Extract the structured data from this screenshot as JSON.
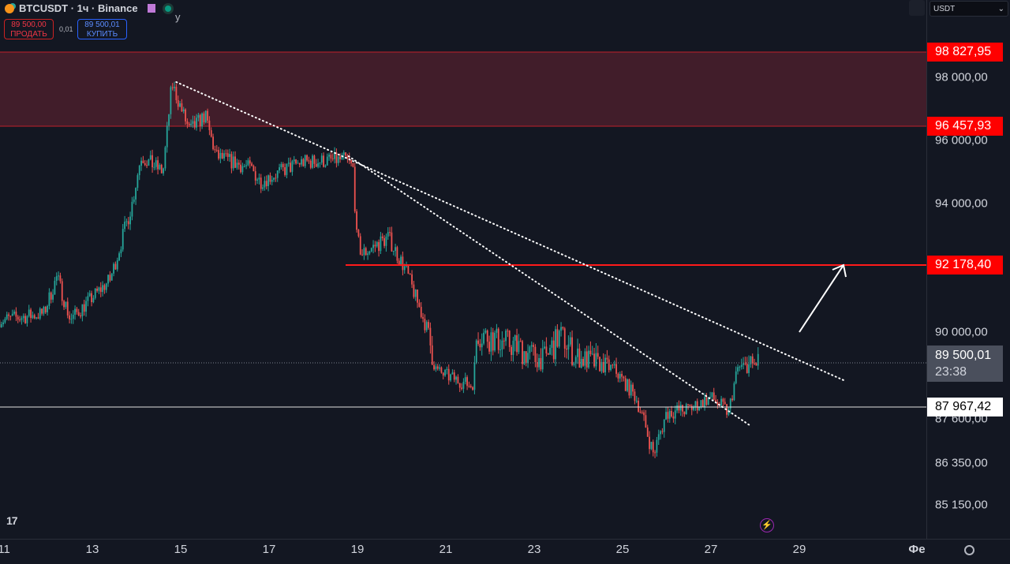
{
  "header": {
    "symbol": "BTCUSDT · 1ч · Binance",
    "extra": "у",
    "sell_price": "89 500,00",
    "sell_label": "ПРОДАТЬ",
    "spread": "0,01",
    "buy_price": "89 500,01",
    "buy_label": "КУПИТЬ"
  },
  "currency_select": "USDT",
  "colors": {
    "bg": "#131722",
    "up": "#26a69a",
    "down": "#ef5350",
    "zone": "#4a1f2b",
    "level": "#ff1a1a"
  },
  "chart_data": {
    "type": "candlestick",
    "title": "BTCUSDT 1h Binance",
    "y_ticks": [
      "98 000,00",
      "96 000,00",
      "94 000,00",
      "90 000,00",
      "87 600,00",
      "86 350,00",
      "85 150,00"
    ],
    "x_ticks": [
      "11",
      "13",
      "15",
      "17",
      "19",
      "21",
      "23",
      "25",
      "27",
      "29",
      "Фе"
    ],
    "price_path": [
      [
        11.0,
        90400
      ],
      [
        11.9,
        90600
      ],
      [
        12.2,
        91800
      ],
      [
        12.5,
        90400
      ],
      [
        13.4,
        91700
      ],
      [
        13.9,
        94000
      ],
      [
        14.1,
        95500
      ],
      [
        14.6,
        95000
      ],
      [
        14.8,
        97800
      ],
      [
        15.2,
        96300
      ],
      [
        15.55,
        96800
      ],
      [
        15.8,
        95500
      ],
      [
        16.6,
        95100
      ],
      [
        16.8,
        94700
      ],
      [
        17.7,
        95300
      ],
      [
        18.75,
        95400
      ],
      [
        18.9,
        95100
      ],
      [
        18.98,
        93000
      ],
      [
        19.1,
        92500
      ],
      [
        19.7,
        93000
      ],
      [
        20.1,
        92000
      ],
      [
        20.4,
        90800
      ],
      [
        20.8,
        89200
      ],
      [
        21.1,
        89000
      ],
      [
        21.6,
        88700
      ],
      [
        21.7,
        90000
      ],
      [
        22.5,
        89800
      ],
      [
        23.2,
        89500
      ],
      [
        23.6,
        90000
      ],
      [
        23.9,
        89600
      ],
      [
        24.8,
        89300
      ],
      [
        25.3,
        88300
      ],
      [
        25.7,
        86600
      ],
      [
        26.0,
        87800
      ],
      [
        26.5,
        87900
      ],
      [
        27.0,
        88300
      ],
      [
        27.4,
        87800
      ],
      [
        27.6,
        89300
      ],
      [
        28.1,
        89500
      ]
    ],
    "resistance_zone": {
      "top": "98 827,95",
      "bottom": "96 457,93"
    },
    "level_red": "92 178,40",
    "level_white": "87 967,42",
    "last_price": "89 500,01",
    "countdown": "23:38",
    "trendlines": [
      [
        [
          14.9,
          97850
        ],
        [
          30.0,
          88900
        ]
      ],
      [
        [
          18.8,
          95500
        ],
        [
          27.9,
          87400
        ]
      ]
    ],
    "arrow": {
      "from": [
        29.0,
        90000
      ],
      "to": [
        30.0,
        92178
      ]
    }
  }
}
